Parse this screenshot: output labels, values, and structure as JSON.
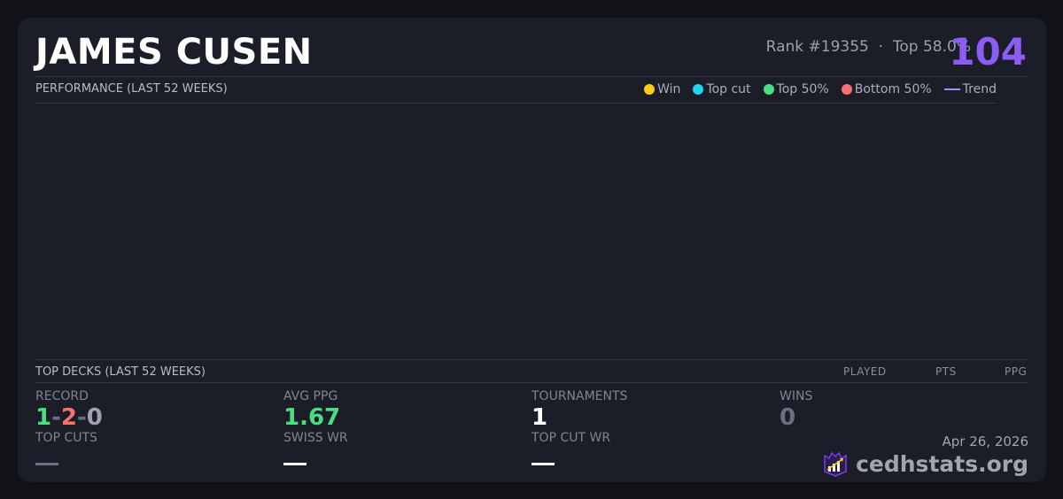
{
  "player": {
    "name": "JAMES CUSEN",
    "rank": "Rank #19355",
    "separator": "·",
    "top_percent": "Top 58.0%",
    "score": "104"
  },
  "performance": {
    "title": "PERFORMANCE (LAST 52 WEEKS)",
    "legend": [
      {
        "label": "Win",
        "color": "#facc15"
      },
      {
        "label": "Top cut",
        "color": "#22d3ee"
      },
      {
        "label": "Top 50%",
        "color": "#4ade80"
      },
      {
        "label": "Bottom 50%",
        "color": "#f87171"
      },
      {
        "label": "Trend",
        "color": "#a78bfa"
      }
    ]
  },
  "top_decks": {
    "title": "TOP DECKS (LAST 52 WEEKS)",
    "columns": [
      "PLAYED",
      "PTS",
      "PPG"
    ]
  },
  "stats": {
    "record": {
      "label": "RECORD",
      "wins": "1",
      "losses": "2",
      "draws": "0",
      "sep": "-"
    },
    "avg_ppg": {
      "label": "AVG PPG",
      "value": "1.67"
    },
    "tournaments": {
      "label": "TOURNAMENTS",
      "value": "1"
    },
    "wins": {
      "label": "WINS",
      "value": "0"
    },
    "top_cuts": {
      "label": "TOP CUTS",
      "value": "—"
    },
    "swiss_wr": {
      "label": "SWISS WR",
      "value": "—"
    },
    "top_cut_wr": {
      "label": "TOP CUT WR",
      "value": "—"
    }
  },
  "footer": {
    "date": "Apr 26, 2026",
    "brand": "cedhstats.org"
  },
  "colors": {
    "accent": "#8b5cf6",
    "positive": "#4ade80",
    "negative": "#f87171",
    "neutral": "#9ca3af"
  }
}
